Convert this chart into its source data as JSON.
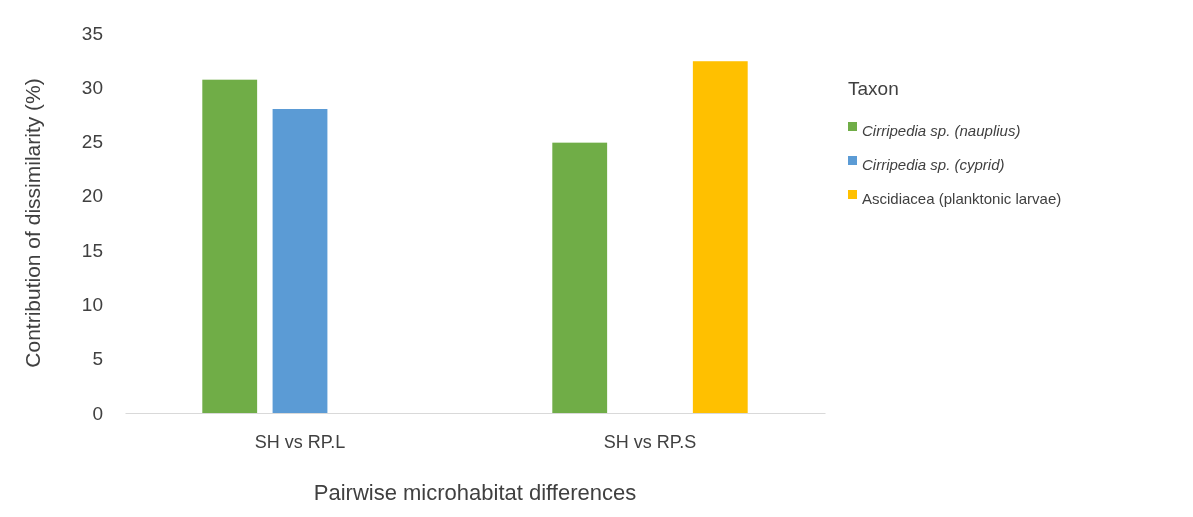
{
  "chart_data": {
    "type": "bar",
    "xlabel": "Pairwise microhabitat differences",
    "ylabel": "Contribution of dissimilarity (%)",
    "legend_title": "Taxon",
    "categories": [
      "SH vs RP.L",
      "SH vs RP.S"
    ],
    "series": [
      {
        "name": "Cirripedia sp. (nauplius)",
        "color": "#70ad47",
        "values": [
          30.7,
          24.9
        ]
      },
      {
        "name": "Cirripedia sp. (cyprid)",
        "color": "#5b9bd5",
        "values": [
          28.0,
          null
        ]
      },
      {
        "name": "Ascidiacea (planktonic larvae)",
        "color": "#ffc000",
        "values": [
          null,
          32.4
        ]
      }
    ],
    "ylim": [
      0,
      35
    ],
    "yticks": [
      0,
      5,
      10,
      15,
      20,
      25,
      30,
      35
    ],
    "grid": false,
    "legend": "right"
  }
}
